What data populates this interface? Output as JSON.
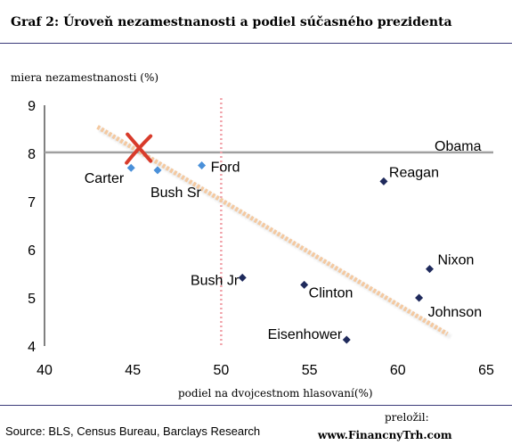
{
  "figure": {
    "title": "Graf 2: Úroveň nezamestnanosti a podiel súčasného prezidenta",
    "source": "Source: BLS, Census Bureau, Barclays Research",
    "translated_label": "preložil:",
    "website": "www.FinancnyTrh.com"
  },
  "chart_data": {
    "type": "scatter",
    "title": "",
    "xlabel": "podiel na dvojcestnom hlasovaní(%)",
    "ylabel": "miera nezamestnanosti (%)",
    "xlim": [
      40,
      65
    ],
    "ylim": [
      4,
      9
    ],
    "x_ticks": [
      "40",
      "45",
      "50",
      "55",
      "60",
      "65"
    ],
    "y_ticks": [
      "4",
      "5",
      "6",
      "7",
      "8",
      "9"
    ],
    "grid": false,
    "points": [
      {
        "label": "Carter",
        "x": 44.9,
        "y": 7.7,
        "color": "#4a90d9"
      },
      {
        "label": "Bush Sr",
        "x": 46.4,
        "y": 7.65,
        "color": "#4a90d9"
      },
      {
        "label": "Ford",
        "x": 48.9,
        "y": 7.75,
        "color": "#4a90d9"
      },
      {
        "label": "Reagan",
        "x": 59.2,
        "y": 7.42,
        "color": "#1f2a5c"
      },
      {
        "label": "Nixon",
        "x": 61.8,
        "y": 5.6,
        "color": "#1f2a5c"
      },
      {
        "label": "Bush Jr",
        "x": 51.2,
        "y": 5.42,
        "color": "#1f2a5c"
      },
      {
        "label": "Clinton",
        "x": 54.7,
        "y": 5.27,
        "color": "#1f2a5c"
      },
      {
        "label": "Johnson",
        "x": 61.2,
        "y": 5.0,
        "color": "#1f2a5c"
      },
      {
        "label": "Eisenhower",
        "x": 57.1,
        "y": 4.13,
        "color": "#1f2a5c"
      }
    ],
    "reference_line": {
      "label": "Obama",
      "y": 8.02,
      "color": "#a0a0a0"
    },
    "vertical_marker": {
      "x": 50,
      "color": "#f0a0a8",
      "style": "dotted"
    },
    "trend_line": {
      "x_start": 43,
      "y_start": 8.55,
      "x_end": 62.8,
      "y_end": 4.25,
      "color": "#f4c9a0"
    },
    "cross_marker": {
      "x": 45.3,
      "y": 8.1,
      "color": "#d83b2b"
    }
  }
}
